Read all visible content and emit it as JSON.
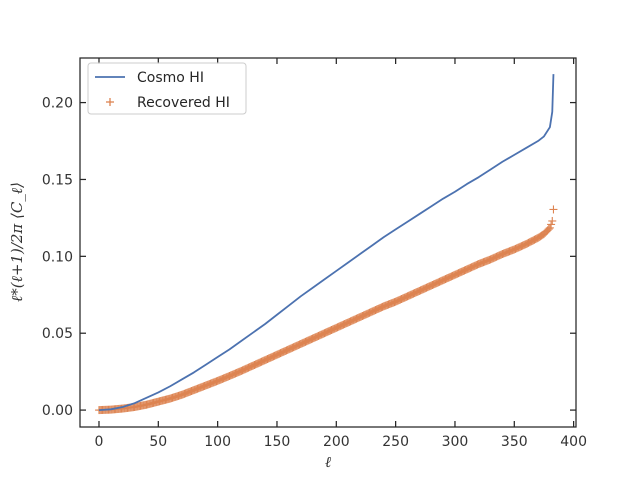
{
  "chart_data": {
    "type": "line",
    "title": "",
    "xlabel": "ℓ",
    "ylabel": "ℓ*(ℓ+1)/2π ⟨C_ℓ⟩",
    "xlim": [
      -16,
      402
    ],
    "ylim": [
      -0.011,
      0.229
    ],
    "xticks": [
      0,
      50,
      100,
      150,
      200,
      250,
      300,
      350,
      400
    ],
    "yticks": [
      0.0,
      0.05,
      0.1,
      0.15,
      0.2
    ],
    "xtick_labels": [
      "0",
      "50",
      "100",
      "150",
      "200",
      "250",
      "300",
      "350",
      "400"
    ],
    "ytick_labels": [
      "0.00",
      "0.05",
      "0.10",
      "0.15",
      "0.20"
    ],
    "grid": false,
    "legend_position": "top-left",
    "series": [
      {
        "name": "Cosmo HI",
        "style": "line",
        "color": "#4c72b0",
        "points": [
          [
            0,
            0.0
          ],
          [
            10,
            0.0005
          ],
          [
            20,
            0.002
          ],
          [
            30,
            0.0045
          ],
          [
            40,
            0.008
          ],
          [
            50,
            0.0115
          ],
          [
            60,
            0.0155
          ],
          [
            70,
            0.02
          ],
          [
            80,
            0.0245
          ],
          [
            90,
            0.0295
          ],
          [
            100,
            0.0345
          ],
          [
            110,
            0.0395
          ],
          [
            120,
            0.045
          ],
          [
            130,
            0.0505
          ],
          [
            140,
            0.056
          ],
          [
            150,
            0.062
          ],
          [
            160,
            0.068
          ],
          [
            170,
            0.074
          ],
          [
            180,
            0.0795
          ],
          [
            190,
            0.085
          ],
          [
            200,
            0.0905
          ],
          [
            210,
            0.096
          ],
          [
            220,
            0.1015
          ],
          [
            230,
            0.107
          ],
          [
            240,
            0.1125
          ],
          [
            250,
            0.1175
          ],
          [
            260,
            0.1225
          ],
          [
            270,
            0.1275
          ],
          [
            280,
            0.1325
          ],
          [
            290,
            0.1375
          ],
          [
            300,
            0.142
          ],
          [
            310,
            0.147
          ],
          [
            320,
            0.1515
          ],
          [
            330,
            0.1565
          ],
          [
            340,
            0.1615
          ],
          [
            350,
            0.166
          ],
          [
            360,
            0.1705
          ],
          [
            370,
            0.175
          ],
          [
            375,
            0.178
          ],
          [
            380,
            0.184
          ],
          [
            382,
            0.194
          ],
          [
            383,
            0.2185
          ]
        ]
      },
      {
        "name": "Recovered HI",
        "style": "marker",
        "marker": "+",
        "color": "#dd8452",
        "points": [
          [
            0,
            0.0
          ],
          [
            10,
            0.0003
          ],
          [
            20,
            0.001
          ],
          [
            30,
            0.002
          ],
          [
            40,
            0.0035
          ],
          [
            50,
            0.0055
          ],
          [
            60,
            0.0075
          ],
          [
            70,
            0.01
          ],
          [
            80,
            0.013
          ],
          [
            90,
            0.016
          ],
          [
            100,
            0.019
          ],
          [
            110,
            0.0222
          ],
          [
            120,
            0.0255
          ],
          [
            130,
            0.029
          ],
          [
            140,
            0.0325
          ],
          [
            150,
            0.036
          ],
          [
            160,
            0.0395
          ],
          [
            170,
            0.043
          ],
          [
            180,
            0.0465
          ],
          [
            190,
            0.05
          ],
          [
            200,
            0.0535
          ],
          [
            210,
            0.057
          ],
          [
            220,
            0.0605
          ],
          [
            230,
            0.064
          ],
          [
            240,
            0.0675
          ],
          [
            250,
            0.0705
          ],
          [
            260,
            0.074
          ],
          [
            270,
            0.0775
          ],
          [
            280,
            0.081
          ],
          [
            290,
            0.0845
          ],
          [
            300,
            0.088
          ],
          [
            310,
            0.0915
          ],
          [
            320,
            0.095
          ],
          [
            330,
            0.098
          ],
          [
            340,
            0.1015
          ],
          [
            350,
            0.1045
          ],
          [
            360,
            0.108
          ],
          [
            370,
            0.112
          ],
          [
            375,
            0.1145
          ],
          [
            380,
            0.1185
          ],
          [
            382,
            0.123
          ],
          [
            383,
            0.1305
          ]
        ]
      }
    ]
  }
}
